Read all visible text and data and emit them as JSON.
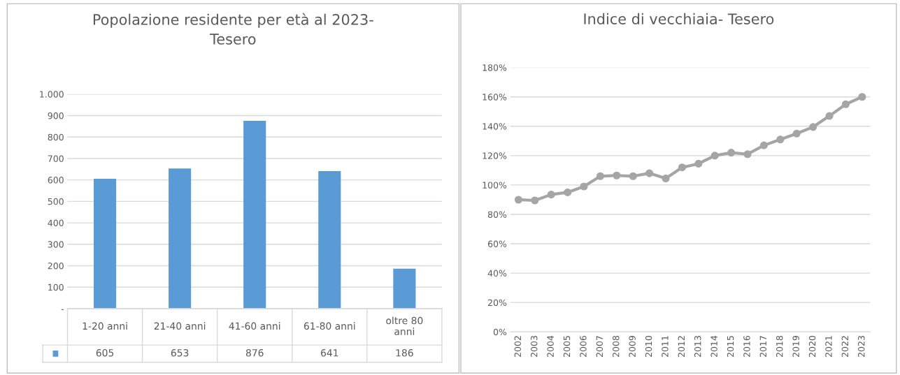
{
  "chart_data": [
    {
      "type": "bar",
      "title": "Popolazione residente per età al 2023-\nTesero",
      "categories": [
        "1-20 anni",
        "21-40 anni",
        "41-60 anni",
        "61-80 anni",
        "oltre 80\nanni"
      ],
      "values": [
        605,
        653,
        876,
        641,
        186
      ],
      "color": "#5b9bd5",
      "ylim": [
        0,
        1000
      ],
      "yticks": [
        {
          "value": 0,
          "label": "-"
        },
        100,
        200,
        300,
        400,
        500,
        600,
        700,
        800,
        900,
        {
          "value": 1000,
          "label": "1.000"
        }
      ],
      "grid": "y",
      "data_labels": true
    },
    {
      "type": "line",
      "title": "Indice di vecchiaia- Tesero",
      "categories": [
        "2002",
        "2003",
        "2004",
        "2005",
        "2006",
        "2007",
        "2008",
        "2009",
        "2010",
        "2011",
        "2012",
        "2013",
        "2014",
        "2015",
        "2016",
        "2017",
        "2018",
        "2019",
        "2020",
        "2021",
        "2022",
        "2023"
      ],
      "values": [
        90,
        89.5,
        93.5,
        95,
        99,
        106,
        106.5,
        106,
        108,
        104.5,
        112,
        114.5,
        120,
        122,
        121,
        127,
        131,
        135,
        139.5,
        147,
        155,
        160
      ],
      "color": "#a5a5a5",
      "marker": "circle",
      "line_style": "solid",
      "ylim": [
        0,
        180
      ],
      "yticks": [
        {
          "value": 0,
          "label": "0%"
        },
        {
          "value": 20,
          "label": "20%"
        },
        {
          "value": 40,
          "label": "40%"
        },
        {
          "value": 60,
          "label": "60%"
        },
        {
          "value": 80,
          "label": "80%"
        },
        {
          "value": 100,
          "label": "100%"
        },
        {
          "value": 120,
          "label": "120%"
        },
        {
          "value": 140,
          "label": "140%"
        },
        {
          "value": 160,
          "label": "160%"
        },
        {
          "value": 180,
          "label": "180%"
        }
      ],
      "grid": "y"
    }
  ]
}
